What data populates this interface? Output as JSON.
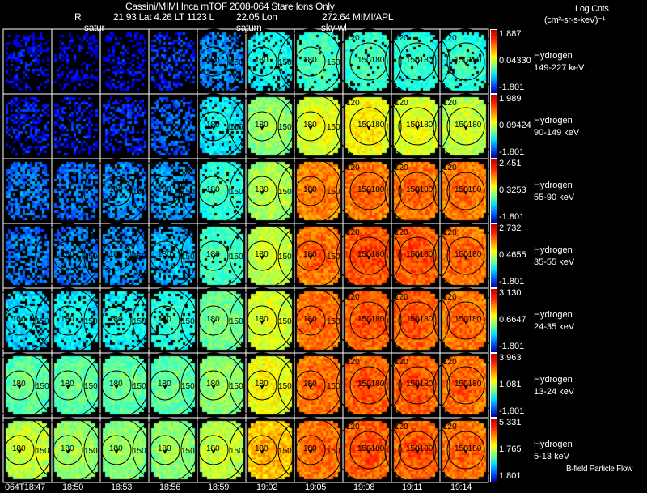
{
  "header": {
    "title": "Cassini/MIMI Inca mTOF  2008-064   Stare   Ions Only",
    "r_label": "R",
    "position": "21.93 Lat 4.26 LT 1123 L",
    "lon": "22.05 Lon",
    "mission": "272.64  MIMI/APL",
    "units_line1": "Log Cnts",
    "units_line2": "(cm²-sr-s-keV)⁻¹"
  },
  "markers": [
    "satur",
    "saturn",
    "sky-wl"
  ],
  "footer": {
    "legend": "B-field Particle Flow"
  },
  "chart_data": {
    "type": "heatmap",
    "title": "Cassini/MIMI Inca mTOF 2008-064 Stare Ions Only",
    "columns": [
      "064T18:47",
      "18:50",
      "18:53",
      "18:56",
      "18:59",
      "19:02",
      "19:05",
      "19:08",
      "19:11",
      "19:14"
    ],
    "contour_labels": [
      [
        "180",
        "150"
      ],
      [
        "180",
        "150"
      ],
      [
        "180",
        "150"
      ],
      [
        "180",
        "150"
      ],
      [
        "180",
        "150"
      ],
      [
        "180",
        "150"
      ],
      [
        "180",
        "150"
      ],
      [
        "120",
        "150180"
      ],
      [
        "120",
        "150180"
      ],
      [
        "120",
        "150180"
      ]
    ],
    "rows": [
      {
        "species": "Hydrogen",
        "energy": "149-227 keV",
        "cb_max": "1.887",
        "cb_mid": "0.04330",
        "cb_min": "-1.801",
        "levels": [
          0.15,
          0.14,
          0.15,
          0.2,
          0.3,
          0.42,
          0.47,
          0.46,
          0.45,
          0.45
        ]
      },
      {
        "species": "Hydrogen",
        "energy": "90-149 keV",
        "cb_max": "1.989",
        "cb_mid": "0.09424",
        "cb_min": "-1.801",
        "levels": [
          0.18,
          0.18,
          0.2,
          0.25,
          0.4,
          0.55,
          0.63,
          0.66,
          0.63,
          0.6
        ]
      },
      {
        "species": "Hydrogen",
        "energy": "55-90 keV",
        "cb_max": "2.451",
        "cb_mid": "0.3253",
        "cb_min": "-1.801",
        "levels": [
          0.27,
          0.27,
          0.3,
          0.32,
          0.45,
          0.58,
          0.78,
          0.8,
          0.8,
          0.79
        ]
      },
      {
        "species": "Hydrogen",
        "energy": "35-55 keV",
        "cb_max": "2.732",
        "cb_mid": "0.4655",
        "cb_min": "-1.801",
        "levels": [
          0.28,
          0.29,
          0.31,
          0.35,
          0.47,
          0.6,
          0.8,
          0.83,
          0.82,
          0.8
        ]
      },
      {
        "species": "Hydrogen",
        "energy": "24-35 keV",
        "cb_max": "3.130",
        "cb_mid": "0.6647",
        "cb_min": "-1.801",
        "levels": [
          0.38,
          0.4,
          0.42,
          0.44,
          0.52,
          0.62,
          0.8,
          0.82,
          0.82,
          0.8
        ]
      },
      {
        "species": "Hydrogen",
        "energy": "13-24 keV",
        "cb_max": "3.963",
        "cb_mid": "1.081",
        "cb_min": "-1.801",
        "levels": [
          0.5,
          0.5,
          0.5,
          0.5,
          0.55,
          0.65,
          0.8,
          0.82,
          0.82,
          0.8
        ]
      },
      {
        "species": "Hydrogen",
        "energy": "5-13 keV",
        "cb_max": "5.331",
        "cb_mid": "1.765",
        "cb_min": "1.801",
        "levels": [
          0.6,
          0.56,
          0.55,
          0.55,
          0.6,
          0.72,
          0.8,
          0.82,
          0.82,
          0.8
        ]
      }
    ]
  }
}
